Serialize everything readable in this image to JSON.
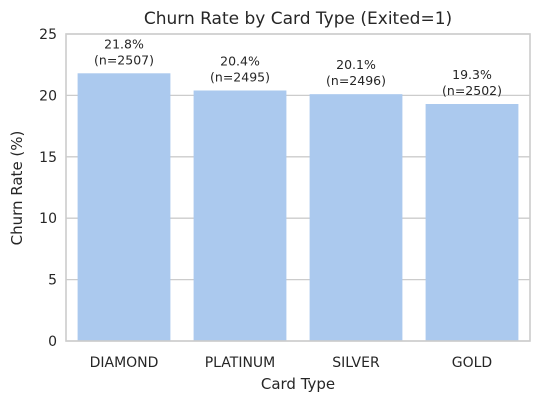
{
  "chart_data": {
    "type": "bar",
    "title": "Churn Rate by Card Type (Exited=1)",
    "xlabel": "Card Type",
    "ylabel": "Churn Rate (%)",
    "ylim": [
      0,
      25
    ],
    "yticks": [
      0,
      5,
      10,
      15,
      20,
      25
    ],
    "grid": true,
    "categories": [
      "DIAMOND",
      "PLATINUM",
      "SILVER",
      "GOLD"
    ],
    "values": [
      21.8,
      20.4,
      20.1,
      19.3
    ],
    "data_labels": [
      {
        "line1": "21.8%",
        "line2": "(n=2507)"
      },
      {
        "line1": "20.4%",
        "line2": "(n=2495)"
      },
      {
        "line1": "20.1%",
        "line2": "(n=2496)"
      },
      {
        "line1": "19.3%",
        "line2": "(n=2502)"
      }
    ],
    "bar_color": "#abc9ee",
    "grid_color": "#cccccc",
    "frame_color": "#cccccc"
  }
}
